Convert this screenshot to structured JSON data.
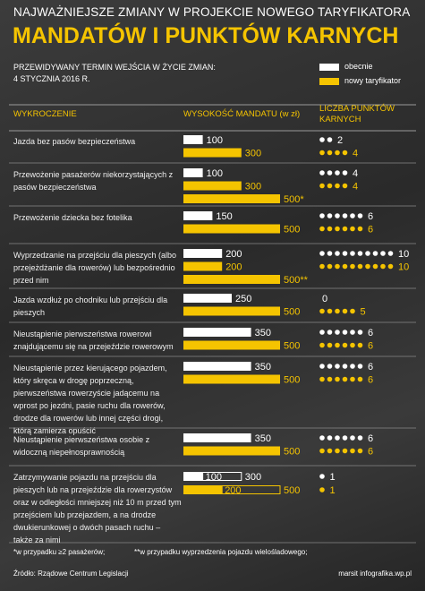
{
  "header": {
    "title": "NAJWAŻNIEJSZE ZMIANY W PROJEKCIE NOWEGO TARYFIKATORA",
    "subtitle": "MANDATÓW I PUNKTÓW KARNYCH",
    "effective_label": "PRZEWIDYWANY TERMIN WEJŚCIA W ŻYCIE ZMIAN:",
    "effective_date": "4 STYCZNIA 2016 R."
  },
  "legend": {
    "current": {
      "label": "obecnie",
      "color": "#ffffff"
    },
    "new": {
      "label": "nowy taryfikator",
      "color": "#f5c400"
    }
  },
  "table": {
    "columns": [
      "WYKROCZENIE",
      "WYSOKOŚĆ MANDATU (w zł)",
      "LICZBA PUNKTÓW KARNYCH"
    ],
    "rows": [
      {
        "offence": "Jazda bez pasów bezpieczeństwa",
        "current_fine": [
          100
        ],
        "new_fine": [
          300
        ],
        "current_points": 2,
        "new_points": 4
      },
      {
        "offence": "Przewożenie pasażerów niekorzystających z pasów bezpieczeństwa",
        "current_fine": [
          100
        ],
        "new_fine": [
          300,
          {
            "value": 500,
            "label": "500*"
          }
        ],
        "current_points": 4,
        "new_points": 4
      },
      {
        "offence": "Przewożenie dziecka bez fotelika",
        "current_fine": [
          150
        ],
        "new_fine": [
          500
        ],
        "current_points": 6,
        "new_points": 6
      },
      {
        "offence": "Wyprzedzanie na przejściu dla pieszych (albo przejeżdżanie dla rowerów) lub bezpośrednio przed nim",
        "current_fine": [
          200
        ],
        "new_fine": [
          200,
          {
            "value": 500,
            "label": "500**"
          }
        ],
        "current_points": 10,
        "new_points": 10
      },
      {
        "offence": "Jazda wzdłuż po chodniku lub przejściu dla pieszych",
        "current_fine": [
          250
        ],
        "new_fine": [
          500
        ],
        "current_points": 0,
        "new_points": 5
      },
      {
        "offence": "Nieustąpienie pierwszeństwa rowerowi znajdującemu się na przejeździe rowerowym",
        "current_fine": [
          350
        ],
        "new_fine": [
          500
        ],
        "current_points": 6,
        "new_points": 6
      },
      {
        "offence": "Nieustąpienie przez kierującego pojazdem, który skręca w drogę poprzeczną, pierwszeństwa rowerzyście jadącemu na wprost po jezdni, pasie ruchu dla rowerów, drodze dla rowerów lub innej części drogi, którą zamierza opuścić",
        "current_fine": [
          350
        ],
        "new_fine": [
          500
        ],
        "current_points": 6,
        "new_points": 6
      },
      {
        "offence": "Nieustąpienie pierwszeństwa osobie z widoczną niepełnosprawnością",
        "current_fine": [
          350
        ],
        "new_fine": [
          500
        ],
        "current_points": 6,
        "new_points": 6
      },
      {
        "offence": "Zatrzymywanie pojazdu na przejściu dla pieszych lub na przejeździe dla rowerzystów oraz w odległości mniejszej niż 10 m przed tym przejściem lub przejazdem, a na drodze dwukierunkowej o dwóch pasach ruchu – także za nimi",
        "current_fine": [
          100,
          300
        ],
        "new_fine": [
          200,
          500
        ],
        "range": true,
        "current_points": 1,
        "new_points": 1
      }
    ]
  },
  "footnotes": [
    "*w przypadku ≥2 pasażerów;",
    "**w przypadku wyprzedzenia pojazdu wielośladowego;"
  ],
  "footer": {
    "source": "Źródło: Rządowe Centrum Legislacji",
    "credit": "marsit infografika.wp.pl"
  }
}
